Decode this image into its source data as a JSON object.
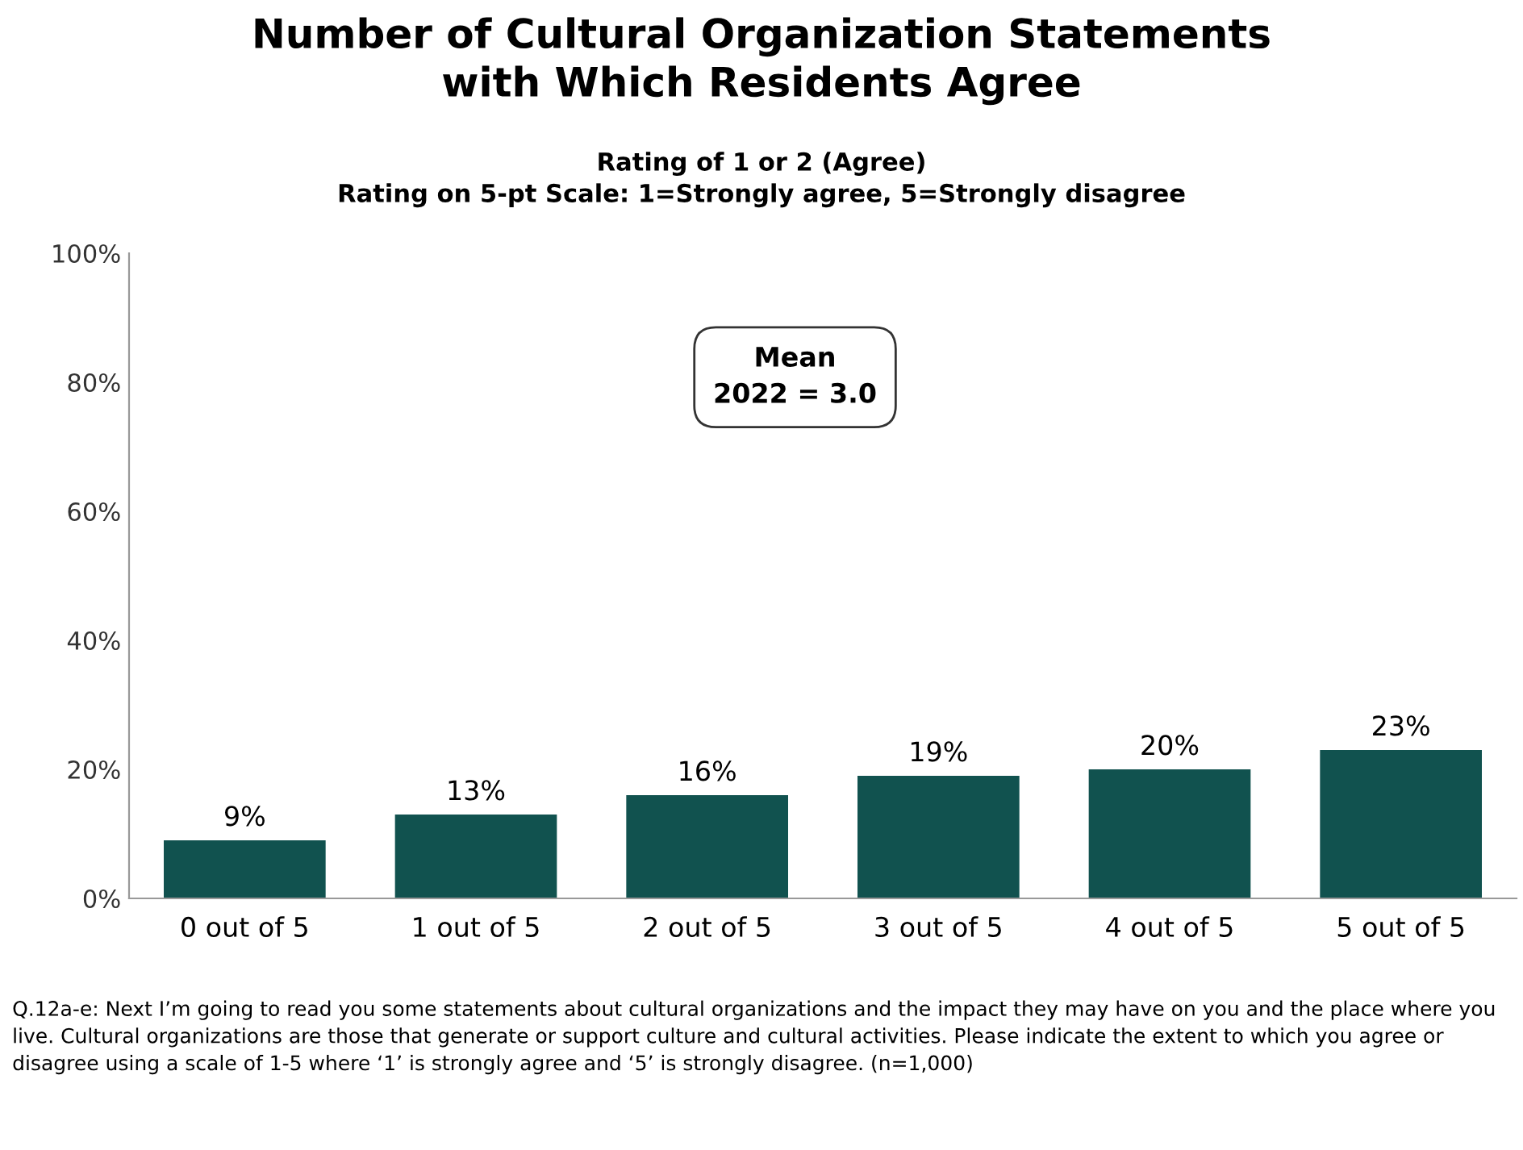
{
  "chart_data": {
    "type": "bar",
    "title": "Number of Cultural Organization Statements\nwith Which Residents Agree",
    "subtitle": "Rating of 1 or 2 (Agree)\nRating on 5-pt Scale: 1=Strongly agree, 5=Strongly disagree",
    "categories": [
      "0 out of 5",
      "1 out of 5",
      "2 out of 5",
      "3 out of 5",
      "4 out of 5",
      "5 out of 5"
    ],
    "values": [
      9,
      13,
      16,
      19,
      20,
      23
    ],
    "value_labels": [
      "9%",
      "13%",
      "16%",
      "19%",
      "20%",
      "23%"
    ],
    "color": "#11524f",
    "ylim": [
      0,
      100
    ],
    "yticks": [
      {
        "value": 0,
        "label": "0%"
      },
      {
        "value": 20,
        "label": "20%"
      },
      {
        "value": 40,
        "label": "40%"
      },
      {
        "value": 60,
        "label": "60%"
      },
      {
        "value": 80,
        "label": "80%"
      },
      {
        "value": 100,
        "label": "100%"
      }
    ],
    "grid": false,
    "annotations": [
      "Mean\n2022 = 3.0",
      "Q.12a-e: Next I’m going to read you some statements about cultural organizations and the impact they may have on you and the place where you live. Cultural organizations are those that generate or support culture and cultural activities. Please indicate the extent to which you agree or disagree using a scale of 1-5 where ‘1’ is strongly agree and ‘5’ is strongly disagree. (n=1,000)"
    ]
  }
}
